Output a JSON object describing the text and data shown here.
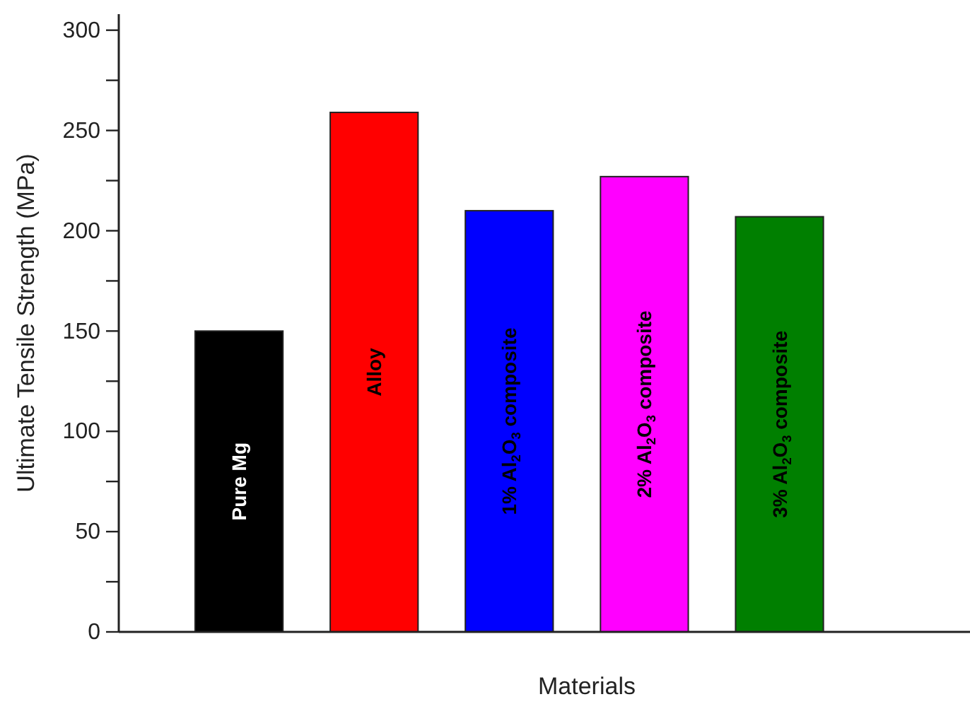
{
  "chart_data": {
    "type": "bar",
    "xlabel": "Materials",
    "ylabel": "Ultimate Tensile Strength (MPa)",
    "categories": [
      "Pure Mg",
      "Alloy",
      "1% Al$_{2}$O$_{3}$ composite",
      "2% Al$_{2}$O$_{3}$ composite",
      "3% Al$_{2}$O$_{3}$ composite"
    ],
    "values": [
      150,
      259,
      210,
      227,
      207
    ],
    "colors": [
      "#000000",
      "#ff0000",
      "#0000ff",
      "#ff00ff",
      "#007f00"
    ],
    "ylim": [
      0,
      308
    ],
    "yticks": [
      0,
      50,
      100,
      150,
      200,
      250,
      300
    ],
    "grid": false
  }
}
